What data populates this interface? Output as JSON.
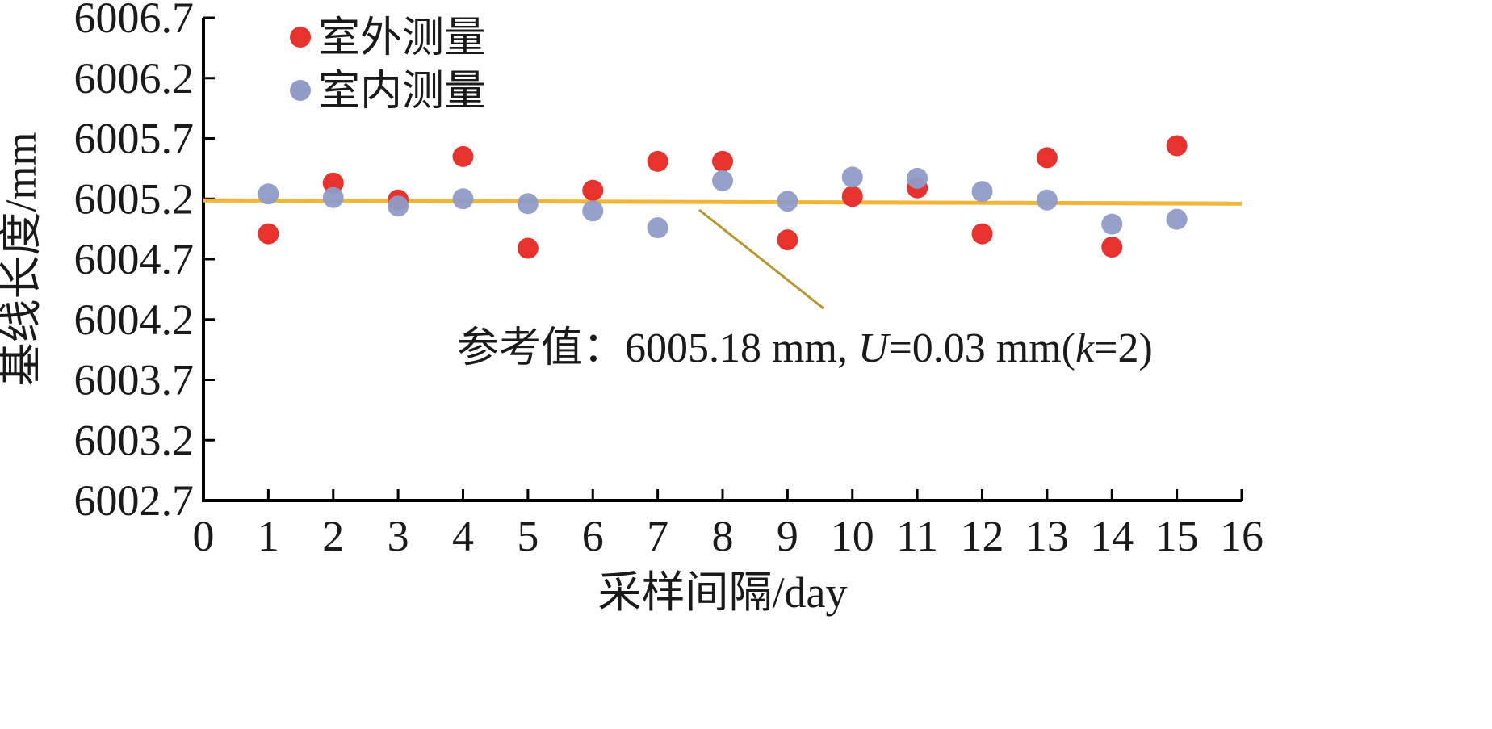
{
  "chart_data": {
    "type": "scatter",
    "xlabel": "采样间隔/day",
    "ylabel": "基线长度/mm",
    "xlim": [
      0,
      16
    ],
    "ylim": [
      6002.7,
      6006.7
    ],
    "x_ticks": [
      "0",
      "1",
      "2",
      "3",
      "4",
      "5",
      "6",
      "7",
      "8",
      "9",
      "10",
      "11",
      "12",
      "13",
      "14",
      "15",
      "16"
    ],
    "y_ticks": [
      "6002.7",
      "6003.2",
      "6003.7",
      "6004.2",
      "6004.7",
      "6005.2",
      "6005.7",
      "6006.2",
      "6006.7"
    ],
    "grid": false,
    "legend_position": "top-left",
    "series": [
      {
        "name": "室外测量",
        "color": "#e8322d",
        "x": [
          1,
          2,
          3,
          4,
          5,
          6,
          7,
          8,
          9,
          10,
          11,
          12,
          13,
          14,
          15
        ],
        "y": [
          6004.91,
          6005.33,
          6005.19,
          6005.55,
          6004.79,
          6005.27,
          6005.51,
          6005.51,
          6004.86,
          6005.22,
          6005.29,
          6004.91,
          6005.54,
          6004.8,
          6005.64
        ]
      },
      {
        "name": "室内测量",
        "color": "#8f9cc7",
        "x": [
          1,
          2,
          3,
          4,
          5,
          6,
          7,
          8,
          9,
          10,
          11,
          12,
          13,
          14,
          15
        ],
        "y": [
          6005.24,
          6005.21,
          6005.14,
          6005.2,
          6005.16,
          6005.1,
          6004.96,
          6005.35,
          6005.18,
          6005.38,
          6005.37,
          6005.26,
          6005.19,
          6004.99,
          6005.03
        ]
      }
    ],
    "reference_line": {
      "y": 6005.18,
      "color": "#f2b536"
    },
    "annotation": {
      "prefix": "参考值：",
      "value_part": "6005.18 mm, ",
      "u_symbol": "U",
      "u_part": "=0.03 mm(",
      "k_symbol": "k",
      "k_part": "=2)",
      "leader_color": "#b8962e"
    }
  }
}
